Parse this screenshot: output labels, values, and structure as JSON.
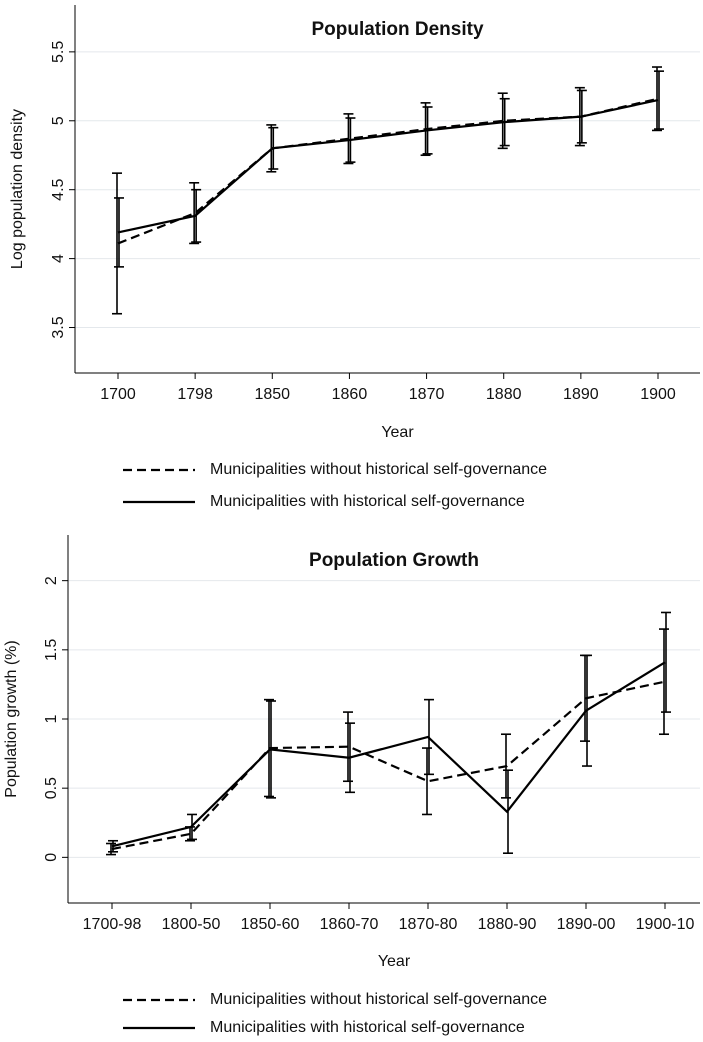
{
  "chart_data": [
    {
      "type": "line",
      "title": "Population Density",
      "x_label": "Year",
      "y_label": "Log population density",
      "categories": [
        "1700",
        "1798",
        "1850",
        "1860",
        "1870",
        "1880",
        "1890",
        "1900"
      ],
      "series": [
        {
          "name": "Municipalities without historical self-governance",
          "color": "#000000",
          "style": "dashed",
          "values": [
            4.11,
            4.33,
            4.8,
            4.87,
            4.94,
            5.0,
            5.03,
            5.16
          ],
          "errors": [
            0.51,
            0.22,
            0.17,
            0.18,
            0.19,
            0.2,
            0.21,
            0.23
          ]
        },
        {
          "name": "Municipalities with historical self-governance",
          "color": "#000000",
          "style": "solid",
          "values": [
            4.19,
            4.31,
            4.8,
            4.86,
            4.93,
            4.99,
            5.03,
            5.15
          ],
          "errors": [
            0.25,
            0.19,
            0.15,
            0.16,
            0.17,
            0.17,
            0.19,
            0.21
          ]
        }
      ],
      "ylim": [
        3.17,
        5.84
      ],
      "yticks": [
        3.5,
        4,
        4.5,
        5,
        5.5
      ],
      "grid": true
    },
    {
      "type": "line",
      "title": "Population Growth",
      "x_label": "Year",
      "y_label": "Population growth (%)",
      "categories": [
        "1700-98",
        "1800-50",
        "1850-60",
        "1860-70",
        "1870-80",
        "1880-90",
        "1890-00",
        "1900-10"
      ],
      "series": [
        {
          "name": "Municipalities without historical self-governance",
          "color": "#000000",
          "style": "dashed",
          "values": [
            0.06,
            0.17,
            0.79,
            0.8,
            0.55,
            0.66,
            1.15,
            1.27
          ],
          "errors": [
            0.04,
            0.05,
            0.35,
            0.25,
            0.24,
            0.23,
            0.31,
            0.38
          ]
        },
        {
          "name": "Municipalities with historical self-governance",
          "color": "#000000",
          "style": "solid",
          "values": [
            0.08,
            0.22,
            0.78,
            0.72,
            0.87,
            0.33,
            1.06,
            1.41
          ],
          "errors": [
            0.04,
            0.09,
            0.35,
            0.25,
            0.27,
            0.3,
            0.4,
            0.36
          ]
        }
      ],
      "ylim": [
        -0.33,
        2.33
      ],
      "yticks": [
        0,
        0.5,
        1,
        1.5,
        2
      ],
      "grid": true
    }
  ]
}
